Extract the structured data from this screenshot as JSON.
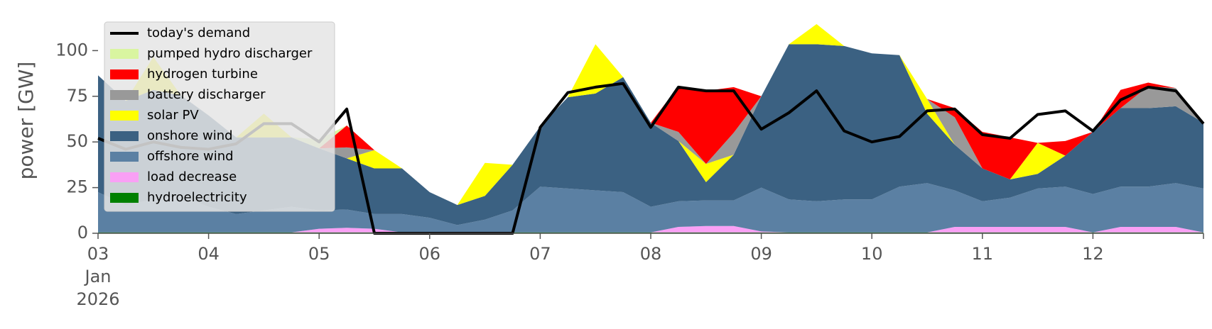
{
  "chart_data": {
    "type": "stacked_area",
    "ylabel": "power [GW]",
    "x": [
      3,
      3.25,
      3.5,
      3.75,
      4,
      4.25,
      4.5,
      4.75,
      5,
      5.25,
      5.5,
      5.75,
      6,
      6.25,
      6.5,
      6.75,
      7,
      7.25,
      7.5,
      7.75,
      8,
      8.25,
      8.5,
      8.75,
      9,
      9.25,
      9.5,
      9.75,
      10,
      10.25,
      10.5,
      10.75,
      11,
      11.25,
      11.5,
      11.75,
      12,
      12.25,
      12.5,
      12.75,
      13
    ],
    "xlim": [
      3,
      13
    ],
    "xticks": [
      {
        "value": 3,
        "label": "03"
      },
      {
        "value": 4,
        "label": "04"
      },
      {
        "value": 5,
        "label": "05"
      },
      {
        "value": 6,
        "label": "06"
      },
      {
        "value": 7,
        "label": "07"
      },
      {
        "value": 8,
        "label": "08"
      },
      {
        "value": 9,
        "label": "09"
      },
      {
        "value": 10,
        "label": "10"
      },
      {
        "value": 11,
        "label": "11"
      },
      {
        "value": 12,
        "label": "12"
      }
    ],
    "x_tick_sublabels": [
      "Jan",
      "2026"
    ],
    "ylim": [
      0,
      118
    ],
    "yticks": [
      0,
      25,
      50,
      75,
      100
    ],
    "legend": "upper left",
    "line": {
      "name": "today's demand",
      "color": "#000000",
      "values": [
        52,
        46,
        50,
        47,
        46,
        49,
        60,
        60,
        50,
        68,
        0,
        0,
        0,
        0,
        0,
        0,
        58,
        77,
        80,
        82,
        58,
        80,
        78,
        78,
        57,
        66,
        78,
        56,
        50,
        53,
        67,
        68,
        54,
        52,
        65,
        67,
        56,
        73,
        80,
        78,
        60
      ]
    },
    "series": [
      {
        "name": "pumped hydro discharger",
        "color": "#d9f5a0",
        "values": [
          0,
          0,
          0,
          0,
          0,
          0,
          0,
          0,
          5,
          0,
          0,
          0,
          0,
          0,
          0,
          0,
          0,
          0,
          0,
          0,
          0,
          0,
          0,
          0,
          0,
          0,
          0,
          0,
          0,
          0,
          0,
          0,
          0,
          0,
          0,
          0,
          0,
          0,
          0,
          0,
          0
        ]
      },
      {
        "name": "hydrogen turbine",
        "color": "#ff0000",
        "values": [
          0,
          0,
          0,
          0,
          0,
          0,
          0,
          0,
          0,
          12,
          0,
          0,
          0,
          0,
          0,
          0,
          0,
          0,
          0,
          0,
          0,
          25,
          40,
          25,
          0,
          0,
          0,
          0,
          0,
          0,
          0,
          5,
          20,
          23,
          0,
          8,
          0,
          10,
          2,
          0,
          0
        ]
      },
      {
        "name": "battery discharger",
        "color": "#999999",
        "values": [
          0,
          0,
          0,
          0,
          0,
          0,
          0,
          0,
          0,
          6,
          0,
          0,
          0,
          0,
          0,
          0,
          0,
          0,
          0,
          0,
          0,
          5,
          0,
          12,
          0,
          0,
          0,
          0,
          0,
          0,
          0,
          15,
          0,
          0,
          0,
          0,
          0,
          0,
          12,
          10,
          0
        ]
      },
      {
        "name": "solar PV",
        "color": "#ffff00",
        "values": [
          0,
          0,
          18,
          0,
          0,
          0,
          13,
          0,
          0,
          0,
          10,
          0,
          0,
          0,
          18,
          0,
          0,
          0,
          27,
          0,
          0,
          0,
          10,
          0,
          0,
          0,
          11,
          0,
          0,
          0,
          8,
          0,
          0,
          0,
          17,
          0,
          0,
          0,
          0,
          0,
          0
        ]
      },
      {
        "name": "onshore wind",
        "color": "#3b6182",
        "values": [
          64,
          57,
          60,
          55,
          50,
          42,
          40,
          38,
          34,
          28,
          25,
          25,
          14,
          11,
          13,
          25,
          33,
          50,
          53,
          63,
          46,
          33,
          10,
          25,
          50,
          85,
          86,
          84,
          80,
          72,
          38,
          25,
          18,
          10,
          8,
          17,
          34,
          43,
          43,
          42,
          36
        ]
      },
      {
        "name": "offshore wind",
        "color": "#5b80a3",
        "values": [
          22,
          15,
          18,
          20,
          14,
          10,
          12,
          14,
          10,
          10,
          8,
          10,
          8,
          4,
          7,
          12,
          25,
          24,
          23,
          22,
          14,
          14,
          14,
          14,
          24,
          18,
          17,
          18,
          18,
          25,
          27,
          20,
          14,
          16,
          21,
          22,
          21,
          22,
          22,
          24,
          24
        ]
      },
      {
        "name": "load decrease",
        "color": "#f9a0f5",
        "values": [
          0,
          0,
          0,
          0,
          0,
          0,
          0,
          0,
          2,
          2.5,
          2,
          0,
          0,
          0,
          0,
          0,
          0,
          0,
          0,
          0,
          0,
          3,
          3.5,
          3.5,
          0.5,
          0,
          0,
          0,
          0,
          0,
          0,
          3,
          3,
          3,
          3,
          3,
          0,
          3,
          3,
          3,
          0
        ]
      },
      {
        "name": "hydroelectricity",
        "color": "#008000",
        "values": [
          0.5,
          0.5,
          0.5,
          0.5,
          0.5,
          0.5,
          0.5,
          0.5,
          0.5,
          0.5,
          0.5,
          0.5,
          0.5,
          0.5,
          0.5,
          0.5,
          0.5,
          0.5,
          0.5,
          0.5,
          0.5,
          0.5,
          0.5,
          0.5,
          0.5,
          0.5,
          0.5,
          0.5,
          0.5,
          0.5,
          0.5,
          0.5,
          0.5,
          0.5,
          0.5,
          0.5,
          0.5,
          0.5,
          0.5,
          0.5,
          0.5
        ]
      }
    ]
  }
}
